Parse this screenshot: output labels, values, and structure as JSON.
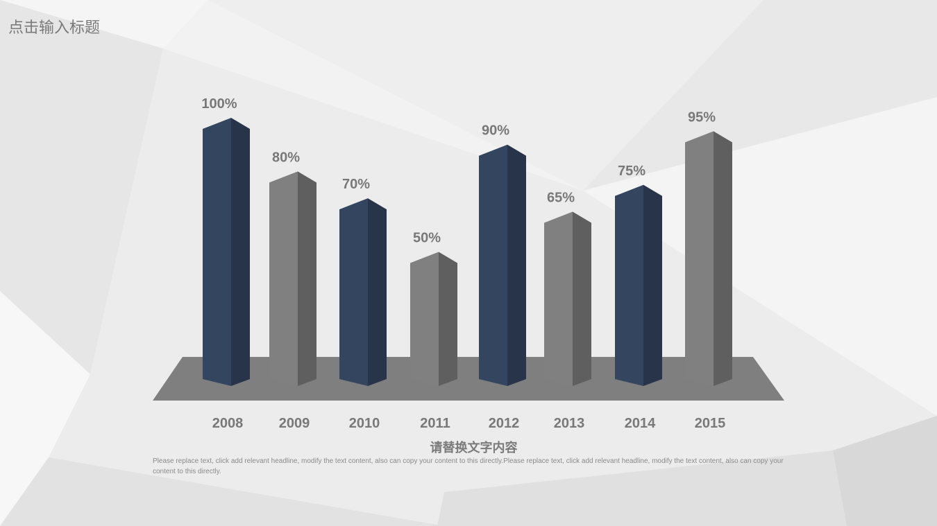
{
  "title": "点击输入标题",
  "subtitle": "请替换文字内容",
  "body_text": "Please replace text, click add relevant headline, modify the text content, also can copy your content to this directly.Please replace text, click add relevant headline, modify the text content, also can copy your content to this directly.",
  "chart_data": {
    "type": "bar",
    "title": "",
    "xlabel": "",
    "ylabel": "",
    "ylim": [
      0,
      100
    ],
    "categories": [
      "2008",
      "2009",
      "2010",
      "2011",
      "2012",
      "2013",
      "2014",
      "2015"
    ],
    "values": [
      100,
      80,
      70,
      50,
      90,
      65,
      75,
      95
    ],
    "value_labels": [
      "100%",
      "80%",
      "70%",
      "50%",
      "90%",
      "65%",
      "75%",
      "95%"
    ],
    "bar_colors": [
      "navy",
      "gray",
      "navy",
      "gray",
      "navy",
      "gray",
      "navy",
      "gray"
    ],
    "colors": {
      "navy_front": "#34465f",
      "navy_side": "#27344a",
      "gray_front": "#808080",
      "gray_side": "#5f5f5f",
      "platform": "#7f7f7f",
      "label": "#787878"
    }
  }
}
